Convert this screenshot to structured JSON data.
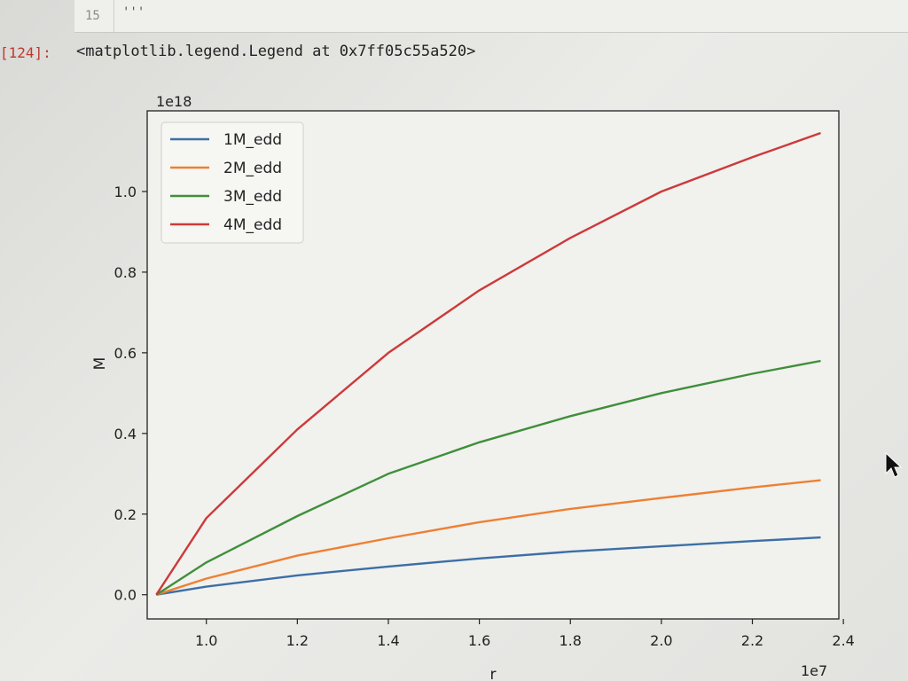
{
  "notebook": {
    "line_number": "15",
    "code_fragment": "'''",
    "prompt": "[124]:",
    "output": "<matplotlib.legend.Legend at 0x7ff05c55a520>"
  },
  "colors": {
    "1M_edd": "#3c6fa6",
    "2M_edd": "#ee8033",
    "3M_edd": "#3f8f3a",
    "4M_edd": "#cc3a3a"
  },
  "chart_data": {
    "type": "line",
    "title": "",
    "xlabel": "r",
    "ylabel": "M",
    "x_offset_label": "1e7",
    "y_offset_label": "1e18",
    "xlim": [
      0.87,
      2.39
    ],
    "ylim": [
      -0.06,
      1.2
    ],
    "x_ticks": [
      1.0,
      1.2,
      1.4,
      1.6,
      1.8,
      2.0,
      2.2,
      2.4
    ],
    "x_tick_labels": [
      "1.0",
      "1.2",
      "1.4",
      "1.6",
      "1.8",
      "2.0",
      "2.2",
      "2.4"
    ],
    "y_ticks": [
      0.0,
      0.2,
      0.4,
      0.6,
      0.8,
      1.0
    ],
    "y_tick_labels": [
      "0.0",
      "0.2",
      "0.4",
      "0.6",
      "0.8",
      "1.0"
    ],
    "legend_position": "top-left",
    "grid": false,
    "x": [
      0.89,
      1.0,
      1.2,
      1.4,
      1.6,
      1.8,
      2.0,
      2.2,
      2.35
    ],
    "series": [
      {
        "name": "1M_edd",
        "values": [
          0.0,
          0.02,
          0.048,
          0.07,
          0.09,
          0.107,
          0.12,
          0.133,
          0.142
        ]
      },
      {
        "name": "2M_edd",
        "values": [
          0.0,
          0.04,
          0.097,
          0.14,
          0.18,
          0.213,
          0.24,
          0.266,
          0.284
        ]
      },
      {
        "name": "3M_edd",
        "values": [
          0.0,
          0.08,
          0.195,
          0.3,
          0.378,
          0.443,
          0.5,
          0.548,
          0.58
        ]
      },
      {
        "name": "4M_edd",
        "values": [
          0.0,
          0.19,
          0.41,
          0.6,
          0.755,
          0.885,
          1.0,
          1.085,
          1.145
        ]
      }
    ]
  }
}
